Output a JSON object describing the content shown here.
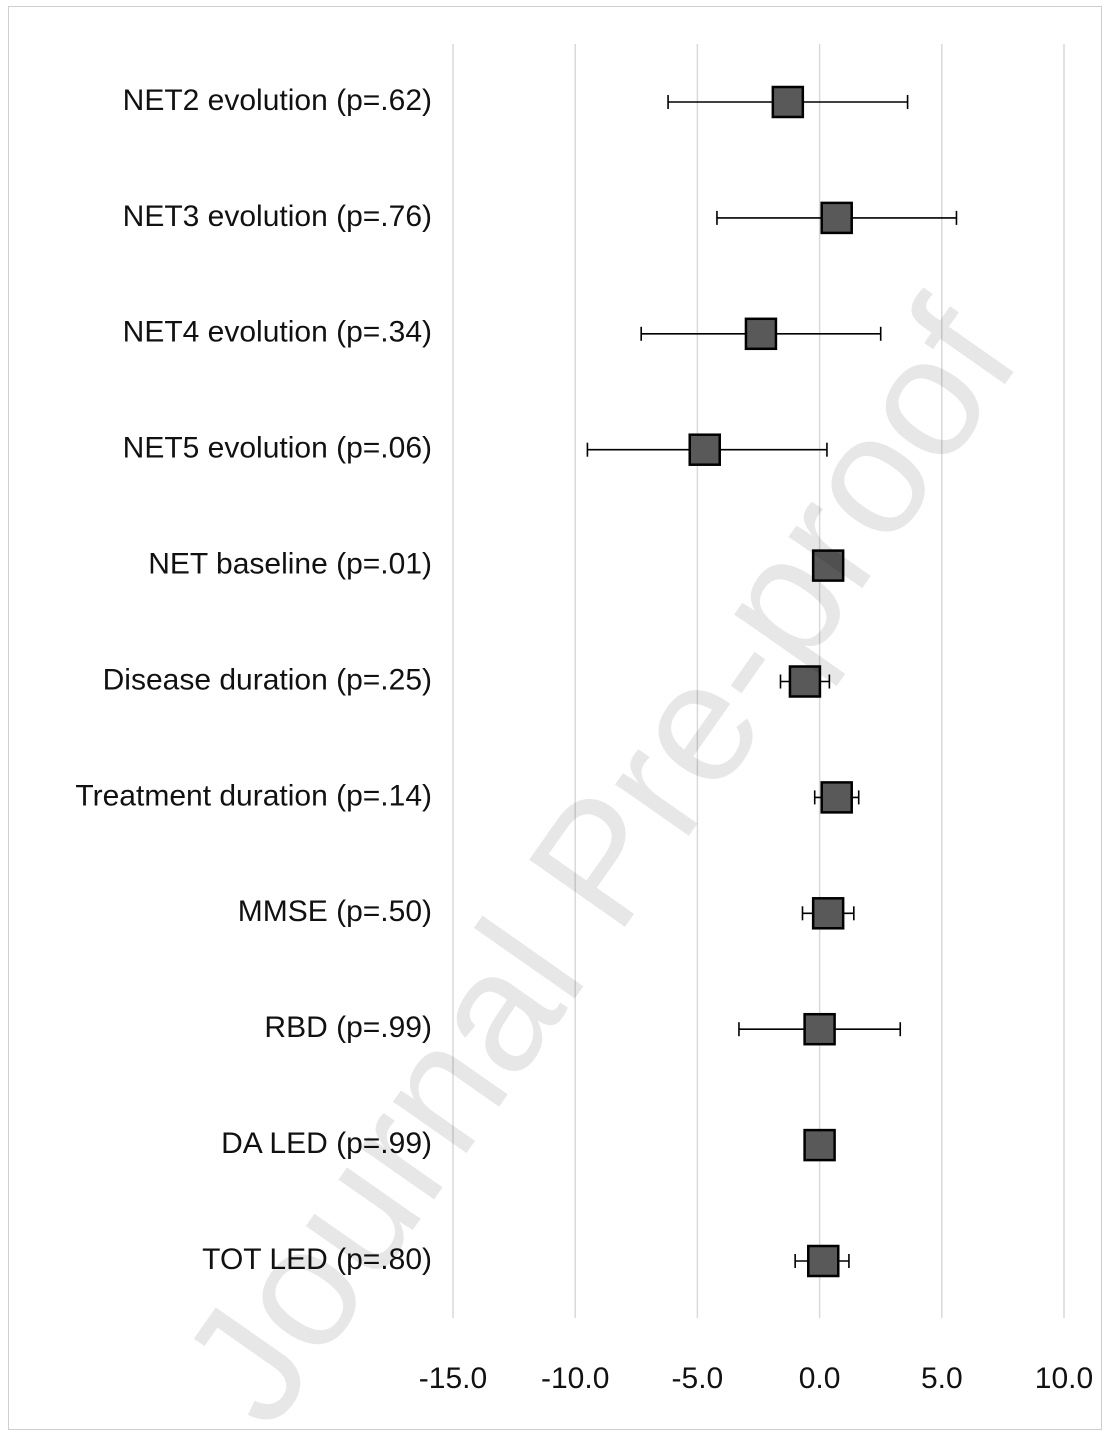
{
  "chart_data": {
    "type": "forest",
    "categories": [
      "NET2 evolution (p=.62)",
      "NET3 evolution (p=.76)",
      "NET4 evolution (p=.34)",
      "NET5 evolution (p=.06)",
      "NET baseline (p=.01)",
      "Disease duration (p=.25)",
      "Treatment duration (p=.14)",
      "MMSE (p=.50)",
      "RBD (p=.99)",
      "DA LED (p=.99)",
      "TOT LED (p=.80)"
    ],
    "estimates": [
      -1.3,
      0.7,
      -2.4,
      -4.7,
      0.35,
      -0.6,
      0.7,
      0.35,
      0.0,
      0.0,
      0.15
    ],
    "ci_low": [
      -6.2,
      -4.2,
      -7.3,
      -9.5,
      0.35,
      -1.6,
      -0.2,
      -0.7,
      -3.3,
      0.0,
      -1.0
    ],
    "ci_high": [
      3.6,
      5.6,
      2.5,
      0.3,
      0.35,
      0.4,
      1.6,
      1.4,
      3.3,
      0.0,
      1.2
    ],
    "x_ticks": [
      -15.0,
      -10.0,
      -5.0,
      0.0,
      5.0,
      10.0
    ],
    "x_tick_labels": [
      "-15.0",
      "-10.0",
      "-5.0",
      "0.0",
      "5.0",
      "10.0"
    ],
    "xlim": [
      -15.0,
      10.0
    ],
    "grid": "vertical",
    "title": "",
    "xlabel": "",
    "ylabel": "",
    "marker": "square",
    "marker_color": "#595959",
    "grid_color": "#d9d9d9"
  },
  "watermark": "Journal Pre-proof"
}
